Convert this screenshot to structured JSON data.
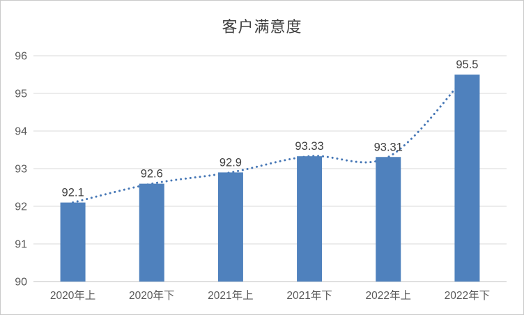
{
  "chart_data": {
    "type": "bar",
    "title": "客户满意度",
    "categories": [
      "2020年上",
      "2020年下",
      "2021年上",
      "2021年下",
      "2022年上",
      "2022年下"
    ],
    "values": [
      92.1,
      92.6,
      92.9,
      93.33,
      93.31,
      95.5
    ],
    "data_labels": [
      "92.1",
      "92.6",
      "92.9",
      "93.33",
      "93.31",
      "95.5"
    ],
    "xlabel": "",
    "ylabel": "",
    "ylim": [
      90,
      96
    ],
    "yticks": [
      90,
      91,
      92,
      93,
      94,
      95,
      96
    ],
    "ytick_labels": [
      "90",
      "91",
      "92",
      "93",
      "94",
      "95",
      "96"
    ],
    "grid": true,
    "legend": "none",
    "trendline": {
      "type": "smooth",
      "style": "dotted",
      "values": [
        92.1,
        92.6,
        92.9,
        93.33,
        93.31,
        95.5
      ]
    },
    "colors": {
      "bar": "#4f81bd",
      "trendline": "#4576b5",
      "gridline": "#d9d9d9",
      "axis_line": "#c0c0c0",
      "tick_label": "#595959",
      "data_label": "#3f3f3f",
      "title": "#404040"
    }
  }
}
